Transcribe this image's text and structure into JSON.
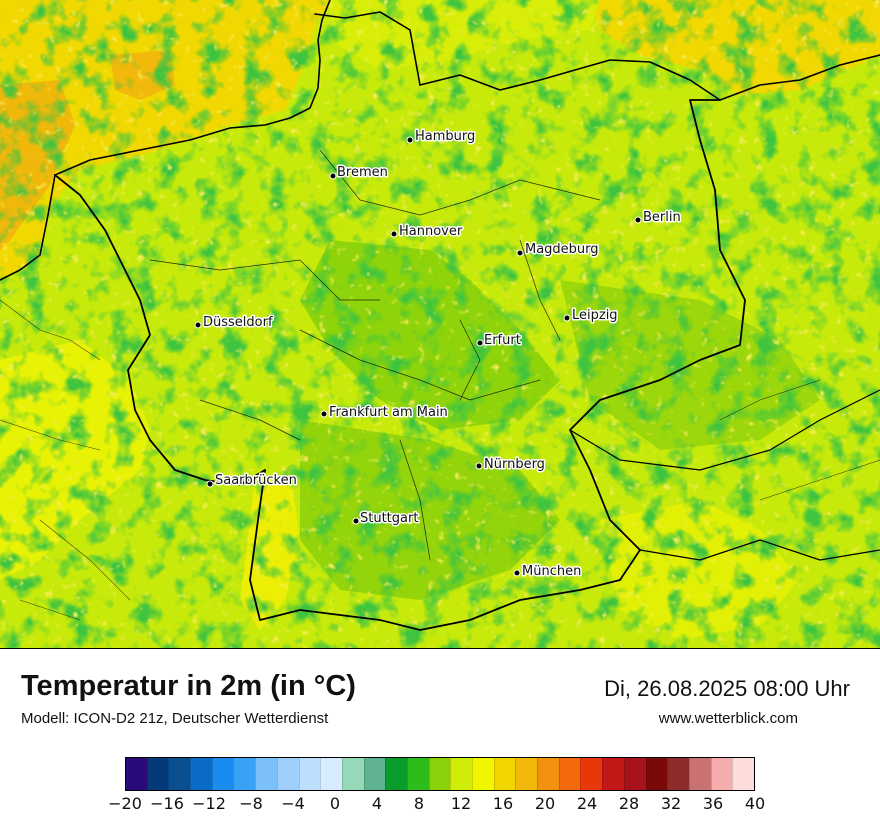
{
  "map": {
    "cities": [
      {
        "name": "Hamburg"
      },
      {
        "name": "Bremen"
      },
      {
        "name": "Berlin"
      },
      {
        "name": "Hannover"
      },
      {
        "name": "Magdeburg"
      },
      {
        "name": "Düsseldorf"
      },
      {
        "name": "Leipzig"
      },
      {
        "name": "Erfurt"
      },
      {
        "name": "Frankfurt am Main"
      },
      {
        "name": "Nürnberg"
      },
      {
        "name": "Saarbrücken"
      },
      {
        "name": "Stuttgart"
      },
      {
        "name": "München"
      }
    ]
  },
  "header": {
    "title": "Temperatur in 2m (in °C)",
    "subtitle": "Modell: ICON-D2 21z, Deutscher Wetterdienst",
    "datetime": "Di, 26.08.2025 08:00 Uhr",
    "website": "www.wetterblick.com"
  },
  "legend": {
    "colors": [
      "#2a0a7a",
      "#053a7a",
      "#0a4f8f",
      "#0a6cc4",
      "#1a8cf0",
      "#3aa2f5",
      "#7cc0fa",
      "#9ed0fb",
      "#bddffd",
      "#d7ecfe",
      "#95d9b9",
      "#5fb390",
      "#0a9d2c",
      "#2dbd1b",
      "#8bd10a",
      "#d0ec09",
      "#f0f500",
      "#f2d600",
      "#f2b80c",
      "#f2900f",
      "#f26a0a",
      "#e8380a",
      "#c41818",
      "#a8121a",
      "#7a0a0a",
      "#8e2c2c",
      "#c87272",
      "#f4acac",
      "#fddcdc"
    ],
    "ticks": [
      "−20",
      "−16",
      "−12",
      "−8",
      "−4",
      "0",
      "4",
      "8",
      "12",
      "16",
      "20",
      "24",
      "28",
      "32",
      "36",
      "40"
    ]
  }
}
